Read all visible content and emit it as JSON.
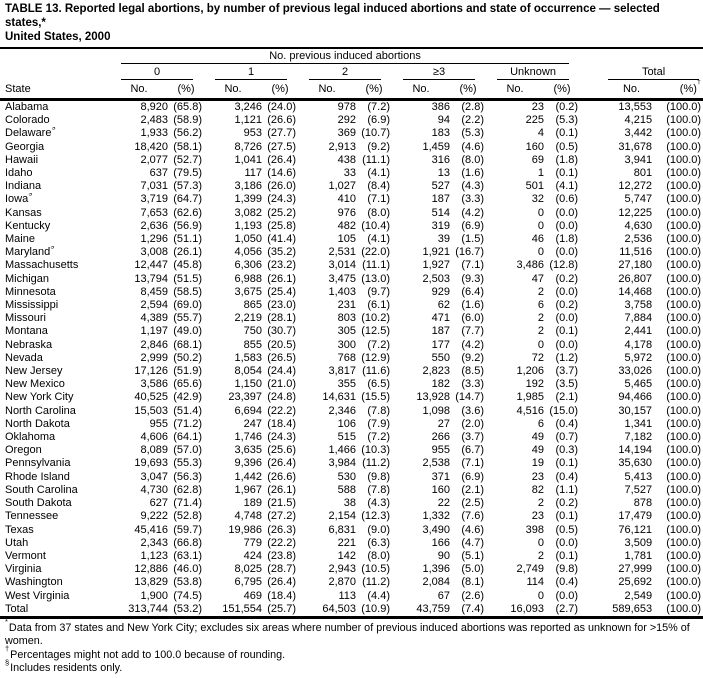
{
  "title": {
    "line1": "TABLE 13. Reported legal abortions, by number of previous legal induced abortions and state of occurrence — selected states,*",
    "line2": "United States, 2000"
  },
  "header": {
    "spanner": "No. previous induced abortions",
    "state_col": "State",
    "groups": [
      "0",
      "1",
      "2",
      "≥3",
      "Unknown"
    ],
    "total_label": "Total",
    "no_label": "No.",
    "pct_label": "(%)",
    "dagger": "†"
  },
  "rows": [
    {
      "state": "Alabama",
      "marker": "",
      "c": [
        "8,920",
        "(65.8)",
        "3,246",
        "(24.0)",
        "978",
        "(7.2)",
        "386",
        "(2.8)",
        "23",
        "(0.2)",
        "13,553",
        "(100.0)"
      ]
    },
    {
      "state": "Colorado",
      "marker": "",
      "c": [
        "2,483",
        "(58.9)",
        "1,121",
        "(26.6)",
        "292",
        "(6.9)",
        "94",
        "(2.2)",
        "225",
        "(5.3)",
        "4,215",
        "(100.0)"
      ]
    },
    {
      "state": "Delaware",
      "marker": "§",
      "c": [
        "1,933",
        "(56.2)",
        "953",
        "(27.7)",
        "369",
        "(10.7)",
        "183",
        "(5.3)",
        "4",
        "(0.1)",
        "3,442",
        "(100.0)"
      ]
    },
    {
      "state": "Georgia",
      "marker": "",
      "c": [
        "18,420",
        "(58.1)",
        "8,726",
        "(27.5)",
        "2,913",
        "(9.2)",
        "1,459",
        "(4.6)",
        "160",
        "(0.5)",
        "31,678",
        "(100.0)"
      ]
    },
    {
      "state": "Hawaii",
      "marker": "",
      "c": [
        "2,077",
        "(52.7)",
        "1,041",
        "(26.4)",
        "438",
        "(11.1)",
        "316",
        "(8.0)",
        "69",
        "(1.8)",
        "3,941",
        "(100.0)"
      ]
    },
    {
      "state": "Idaho",
      "marker": "",
      "c": [
        "637",
        "(79.5)",
        "117",
        "(14.6)",
        "33",
        "(4.1)",
        "13",
        "(1.6)",
        "1",
        "(0.1)",
        "801",
        "(100.0)"
      ]
    },
    {
      "state": "Indiana",
      "marker": "",
      "c": [
        "7,031",
        "(57.3)",
        "3,186",
        "(26.0)",
        "1,027",
        "(8.4)",
        "527",
        "(4.3)",
        "501",
        "(4.1)",
        "12,272",
        "(100.0)"
      ]
    },
    {
      "state": "Iowa",
      "marker": "§",
      "c": [
        "3,719",
        "(64.7)",
        "1,399",
        "(24.3)",
        "410",
        "(7.1)",
        "187",
        "(3.3)",
        "32",
        "(0.6)",
        "5,747",
        "(100.0)"
      ]
    },
    {
      "state": "Kansas",
      "marker": "",
      "c": [
        "7,653",
        "(62.6)",
        "3,082",
        "(25.2)",
        "976",
        "(8.0)",
        "514",
        "(4.2)",
        "0",
        "(0.0)",
        "12,225",
        "(100.0)"
      ]
    },
    {
      "state": "Kentucky",
      "marker": "",
      "c": [
        "2,636",
        "(56.9)",
        "1,193",
        "(25.8)",
        "482",
        "(10.4)",
        "319",
        "(6.9)",
        "0",
        "(0.0)",
        "4,630",
        "(100.0)"
      ]
    },
    {
      "state": "Maine",
      "marker": "",
      "c": [
        "1,296",
        "(51.1)",
        "1,050",
        "(41.4)",
        "105",
        "(4.1)",
        "39",
        "(1.5)",
        "46",
        "(1.8)",
        "2,536",
        "(100.0)"
      ]
    },
    {
      "state": "Maryland",
      "marker": "§",
      "c": [
        "3,008",
        "(26.1)",
        "4,056",
        "(35.2)",
        "2,531",
        "(22.0)",
        "1,921",
        "(16.7)",
        "0",
        "(0.0)",
        "11,516",
        "(100.0)"
      ]
    },
    {
      "state": "Massachusetts",
      "marker": "",
      "c": [
        "12,447",
        "(45.8)",
        "6,306",
        "(23.2)",
        "3,014",
        "(11.1)",
        "1,927",
        "(7.1)",
        "3,486",
        "(12.8)",
        "27,180",
        "(100.0)"
      ]
    },
    {
      "state": "Michigan",
      "marker": "",
      "c": [
        "13,794",
        "(51.5)",
        "6,988",
        "(26.1)",
        "3,475",
        "(13.0)",
        "2,503",
        "(9.3)",
        "47",
        "(0.2)",
        "26,807",
        "(100.0)"
      ]
    },
    {
      "state": "Minnesota",
      "marker": "",
      "c": [
        "8,459",
        "(58.5)",
        "3,675",
        "(25.4)",
        "1,403",
        "(9.7)",
        "929",
        "(6.4)",
        "2",
        "(0.0)",
        "14,468",
        "(100.0)"
      ]
    },
    {
      "state": "Mississippi",
      "marker": "",
      "c": [
        "2,594",
        "(69.0)",
        "865",
        "(23.0)",
        "231",
        "(6.1)",
        "62",
        "(1.6)",
        "6",
        "(0.2)",
        "3,758",
        "(100.0)"
      ]
    },
    {
      "state": "Missouri",
      "marker": "",
      "c": [
        "4,389",
        "(55.7)",
        "2,219",
        "(28.1)",
        "803",
        "(10.2)",
        "471",
        "(6.0)",
        "2",
        "(0.0)",
        "7,884",
        "(100.0)"
      ]
    },
    {
      "state": "Montana",
      "marker": "",
      "c": [
        "1,197",
        "(49.0)",
        "750",
        "(30.7)",
        "305",
        "(12.5)",
        "187",
        "(7.7)",
        "2",
        "(0.1)",
        "2,441",
        "(100.0)"
      ]
    },
    {
      "state": "Nebraska",
      "marker": "",
      "c": [
        "2,846",
        "(68.1)",
        "855",
        "(20.5)",
        "300",
        "(7.2)",
        "177",
        "(4.2)",
        "0",
        "(0.0)",
        "4,178",
        "(100.0)"
      ]
    },
    {
      "state": "Nevada",
      "marker": "",
      "c": [
        "2,999",
        "(50.2)",
        "1,583",
        "(26.5)",
        "768",
        "(12.9)",
        "550",
        "(9.2)",
        "72",
        "(1.2)",
        "5,972",
        "(100.0)"
      ]
    },
    {
      "state": "New Jersey",
      "marker": "",
      "c": [
        "17,126",
        "(51.9)",
        "8,054",
        "(24.4)",
        "3,817",
        "(11.6)",
        "2,823",
        "(8.5)",
        "1,206",
        "(3.7)",
        "33,026",
        "(100.0)"
      ]
    },
    {
      "state": "New Mexico",
      "marker": "",
      "c": [
        "3,586",
        "(65.6)",
        "1,150",
        "(21.0)",
        "355",
        "(6.5)",
        "182",
        "(3.3)",
        "192",
        "(3.5)",
        "5,465",
        "(100.0)"
      ]
    },
    {
      "state": "New York City",
      "marker": "",
      "c": [
        "40,525",
        "(42.9)",
        "23,397",
        "(24.8)",
        "14,631",
        "(15.5)",
        "13,928",
        "(14.7)",
        "1,985",
        "(2.1)",
        "94,466",
        "(100.0)"
      ]
    },
    {
      "state": "North Carolina",
      "marker": "",
      "c": [
        "15,503",
        "(51.4)",
        "6,694",
        "(22.2)",
        "2,346",
        "(7.8)",
        "1,098",
        "(3.6)",
        "4,516",
        "(15.0)",
        "30,157",
        "(100.0)"
      ]
    },
    {
      "state": "North Dakota",
      "marker": "",
      "c": [
        "955",
        "(71.2)",
        "247",
        "(18.4)",
        "106",
        "(7.9)",
        "27",
        "(2.0)",
        "6",
        "(0.4)",
        "1,341",
        "(100.0)"
      ]
    },
    {
      "state": "Oklahoma",
      "marker": "",
      "c": [
        "4,606",
        "(64.1)",
        "1,746",
        "(24.3)",
        "515",
        "(7.2)",
        "266",
        "(3.7)",
        "49",
        "(0.7)",
        "7,182",
        "(100.0)"
      ]
    },
    {
      "state": "Oregon",
      "marker": "",
      "c": [
        "8,089",
        "(57.0)",
        "3,635",
        "(25.6)",
        "1,466",
        "(10.3)",
        "955",
        "(6.7)",
        "49",
        "(0.3)",
        "14,194",
        "(100.0)"
      ]
    },
    {
      "state": "Pennsylvania",
      "marker": "",
      "c": [
        "19,693",
        "(55.3)",
        "9,396",
        "(26.4)",
        "3,984",
        "(11.2)",
        "2,538",
        "(7.1)",
        "19",
        "(0.1)",
        "35,630",
        "(100.0)"
      ]
    },
    {
      "state": "Rhode Island",
      "marker": "",
      "c": [
        "3,047",
        "(56.3)",
        "1,442",
        "(26.6)",
        "530",
        "(9.8)",
        "371",
        "(6.9)",
        "23",
        "(0.4)",
        "5,413",
        "(100.0)"
      ]
    },
    {
      "state": "South Carolina",
      "marker": "",
      "c": [
        "4,730",
        "(62.8)",
        "1,967",
        "(26.1)",
        "588",
        "(7.8)",
        "160",
        "(2.1)",
        "82",
        "(1.1)",
        "7,527",
        "(100.0)"
      ]
    },
    {
      "state": "South Dakota",
      "marker": "",
      "c": [
        "627",
        "(71.4)",
        "189",
        "(21.5)",
        "38",
        "(4.3)",
        "22",
        "(2.5)",
        "2",
        "(0.2)",
        "878",
        "(100.0)"
      ]
    },
    {
      "state": "Tennessee",
      "marker": "",
      "c": [
        "9,222",
        "(52.8)",
        "4,748",
        "(27.2)",
        "2,154",
        "(12.3)",
        "1,332",
        "(7.6)",
        "23",
        "(0.1)",
        "17,479",
        "(100.0)"
      ]
    },
    {
      "state": "Texas",
      "marker": "",
      "c": [
        "45,416",
        "(59.7)",
        "19,986",
        "(26.3)",
        "6,831",
        "(9.0)",
        "3,490",
        "(4.6)",
        "398",
        "(0.5)",
        "76,121",
        "(100.0)"
      ]
    },
    {
      "state": "Utah",
      "marker": "",
      "c": [
        "2,343",
        "(66.8)",
        "779",
        "(22.2)",
        "221",
        "(6.3)",
        "166",
        "(4.7)",
        "0",
        "(0.0)",
        "3,509",
        "(100.0)"
      ]
    },
    {
      "state": "Vermont",
      "marker": "",
      "c": [
        "1,123",
        "(63.1)",
        "424",
        "(23.8)",
        "142",
        "(8.0)",
        "90",
        "(5.1)",
        "2",
        "(0.1)",
        "1,781",
        "(100.0)"
      ]
    },
    {
      "state": "Virginia",
      "marker": "",
      "c": [
        "12,886",
        "(46.0)",
        "8,025",
        "(28.7)",
        "2,943",
        "(10.5)",
        "1,396",
        "(5.0)",
        "2,749",
        "(9.8)",
        "27,999",
        "(100.0)"
      ]
    },
    {
      "state": "Washington",
      "marker": "",
      "c": [
        "13,829",
        "(53.8)",
        "6,795",
        "(26.4)",
        "2,870",
        "(11.2)",
        "2,084",
        "(8.1)",
        "114",
        "(0.4)",
        "25,692",
        "(100.0)"
      ]
    },
    {
      "state": "West Virginia",
      "marker": "",
      "c": [
        "1,900",
        "(74.5)",
        "469",
        "(18.4)",
        "113",
        "(4.4)",
        "67",
        "(2.6)",
        "0",
        "(0.0)",
        "2,549",
        "(100.0)"
      ]
    }
  ],
  "total_row": {
    "state": "Total",
    "marker": "",
    "c": [
      "313,744",
      "(53.2)",
      "151,554",
      "(25.7)",
      "64,503",
      "(10.9)",
      "43,759",
      "(7.4)",
      "16,093",
      "(2.7)",
      "589,653",
      "(100.0)"
    ]
  },
  "footnotes": [
    {
      "marker": "*",
      "text": "Data from 37 states and New York City; excludes six areas where number of previous induced abortions was reported as unknown for >15% of women."
    },
    {
      "marker": "†",
      "text": "Percentages might not add to 100.0 because of rounding."
    },
    {
      "marker": "§",
      "text": "Includes residents only."
    }
  ]
}
